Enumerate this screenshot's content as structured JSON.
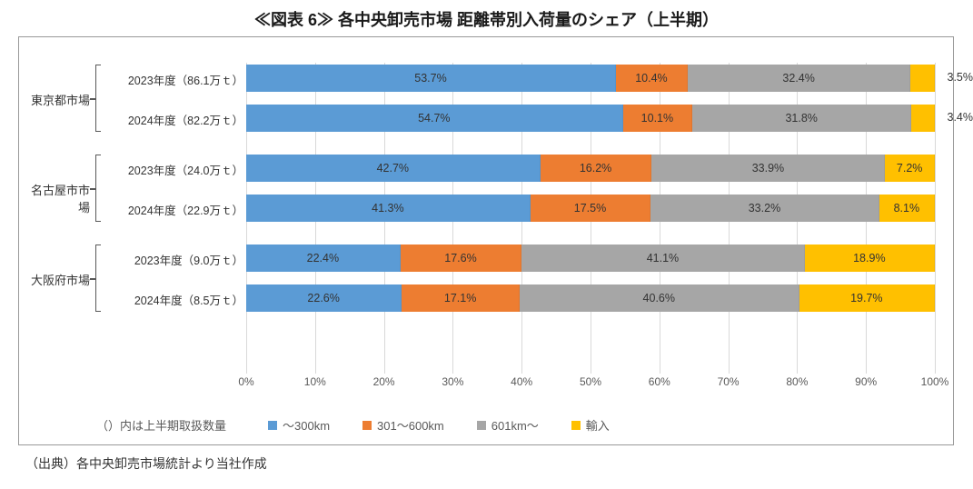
{
  "title": "≪図表 6≫  各中央卸売市場  距離帯別入荷量のシェア（上半期）",
  "source": "（出典）各中央卸売市場統計より当社作成",
  "chart": {
    "type": "stacked_bar_horizontal",
    "xlim": [
      0,
      100
    ],
    "xtick_step": 10,
    "xtick_suffix": "%",
    "grid_color": "#d9d9d9",
    "background_color": "#ffffff",
    "label_fontsize": 13,
    "value_fontsize": 12.5,
    "groups": [
      {
        "label": "東京都市場",
        "rows": [
          {
            "label": "2023年度（86.1万ｔ）",
            "values": [
              53.7,
              10.4,
              32.4,
              3.5
            ]
          },
          {
            "label": "2024年度（82.2万ｔ）",
            "values": [
              54.7,
              10.1,
              31.8,
              3.4
            ]
          }
        ]
      },
      {
        "label": "名古屋市市場",
        "rows": [
          {
            "label": "2023年度（24.0万ｔ）",
            "values": [
              42.7,
              16.2,
              33.9,
              7.2
            ]
          },
          {
            "label": "2024年度（22.9万ｔ）",
            "values": [
              41.3,
              17.5,
              33.2,
              8.1
            ]
          }
        ]
      },
      {
        "label": "大阪府市場",
        "rows": [
          {
            "label": "2023年度（9.0万ｔ）",
            "values": [
              22.4,
              17.6,
              41.1,
              18.9
            ]
          },
          {
            "label": "2024年度（8.5万ｔ）",
            "values": [
              22.6,
              17.1,
              40.6,
              19.7
            ]
          }
        ]
      }
    ],
    "series": [
      {
        "label": "～300km",
        "color": "#5b9bd5"
      },
      {
        "label": "301～600km",
        "color": "#ed7d31"
      },
      {
        "label": "601km～",
        "color": "#a6a6a6"
      },
      {
        "label": "輸入",
        "color": "#ffc000"
      }
    ],
    "legend_note": "（）内は上半期取扱数量"
  }
}
